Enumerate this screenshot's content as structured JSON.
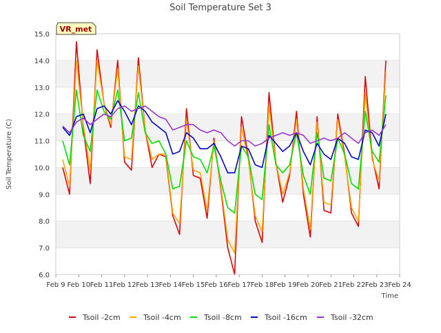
{
  "chart_data": {
    "type": "line",
    "title": "Soil Temperature Set 3",
    "xlabel": "Time",
    "ylabel": "Soil Temperature (C)",
    "ylim": [
      6.0,
      15.0
    ],
    "yticks": [
      "6.0",
      "7.0",
      "8.0",
      "9.0",
      "10.0",
      "11.0",
      "12.0",
      "13.0",
      "14.0",
      "15.0"
    ],
    "xlim": [
      0,
      15
    ],
    "xticks": [
      "Feb 9",
      "Feb 10",
      "Feb 11",
      "Feb 12",
      "Feb 13",
      "Feb 14",
      "Feb 15",
      "Feb 16",
      "Feb 17",
      "Feb 18",
      "Feb 19",
      "Feb 20",
      "Feb 21",
      "Feb 22",
      "Feb 23",
      "Feb 24"
    ],
    "grid_bands": true,
    "legend_position": "bottom",
    "station_label": "VR_met",
    "x": [
      0.3,
      0.6,
      0.9,
      1.2,
      1.5,
      1.8,
      2.1,
      2.4,
      2.7,
      3.0,
      3.3,
      3.6,
      3.9,
      4.2,
      4.5,
      4.8,
      5.1,
      5.4,
      5.7,
      6.0,
      6.3,
      6.6,
      6.9,
      7.2,
      7.5,
      7.8,
      8.1,
      8.4,
      8.7,
      9.0,
      9.3,
      9.6,
      9.9,
      10.2,
      10.5,
      10.8,
      11.1,
      11.4,
      11.7,
      12.0,
      12.3,
      12.6,
      12.9,
      13.2,
      13.5,
      13.8,
      14.1,
      14.4
    ],
    "series": [
      {
        "name": "Tsoil -2cm",
        "color": "#dd0000",
        "values": [
          10.0,
          9.0,
          14.7,
          11.5,
          9.4,
          14.4,
          12.4,
          11.5,
          14.0,
          10.2,
          9.9,
          14.1,
          11.4,
          10.0,
          10.5,
          10.4,
          8.2,
          7.5,
          12.2,
          9.7,
          9.6,
          8.1,
          11.1,
          9.2,
          7.0,
          6.0,
          11.9,
          10.4,
          8.0,
          7.2,
          12.8,
          10.2,
          8.7,
          9.7,
          12.1,
          9.0,
          7.4,
          11.9,
          8.4,
          8.3,
          12.0,
          10.5,
          8.3,
          7.8,
          13.4,
          10.4,
          9.2,
          14.0
        ]
      },
      {
        "name": "Tsoil -4cm",
        "color": "#ffa500",
        "values": [
          10.3,
          9.3,
          14.0,
          11.6,
          9.9,
          14.0,
          12.4,
          11.6,
          13.7,
          10.4,
          10.3,
          13.8,
          11.4,
          10.3,
          10.5,
          10.5,
          8.3,
          7.9,
          11.8,
          9.9,
          9.8,
          8.4,
          11.0,
          9.3,
          7.3,
          6.8,
          11.5,
          10.3,
          8.2,
          7.6,
          12.3,
          10.2,
          9.0,
          9.8,
          11.8,
          9.2,
          7.7,
          11.7,
          8.7,
          8.6,
          11.8,
          10.4,
          8.5,
          8.0,
          12.8,
          10.3,
          9.5,
          13.6
        ]
      },
      {
        "name": "Tsoil -8cm",
        "color": "#00dd00",
        "values": [
          11.0,
          10.1,
          12.9,
          11.2,
          10.6,
          12.9,
          12.1,
          11.8,
          12.9,
          11.0,
          11.1,
          12.8,
          11.3,
          10.9,
          11.0,
          10.5,
          9.2,
          9.3,
          11.0,
          10.4,
          10.3,
          9.8,
          10.8,
          9.5,
          8.5,
          8.3,
          10.8,
          10.4,
          9.0,
          8.8,
          11.6,
          10.1,
          9.8,
          10.1,
          11.3,
          9.7,
          9.0,
          11.3,
          9.6,
          9.5,
          11.1,
          10.5,
          9.4,
          9.2,
          12.1,
          10.6,
          10.2,
          12.7
        ]
      },
      {
        "name": "Tsoil -16cm",
        "color": "#0000cc",
        "values": [
          11.5,
          11.2,
          11.9,
          12.0,
          11.3,
          12.2,
          12.3,
          12.0,
          12.5,
          12.1,
          11.6,
          12.3,
          12.1,
          11.7,
          11.5,
          11.3,
          10.5,
          10.6,
          11.3,
          11.1,
          10.7,
          10.7,
          10.9,
          10.4,
          9.8,
          9.8,
          10.8,
          10.7,
          10.1,
          10.0,
          11.2,
          10.9,
          10.6,
          10.8,
          11.3,
          10.6,
          10.1,
          10.9,
          10.5,
          10.3,
          11.1,
          10.9,
          10.4,
          10.3,
          11.4,
          11.3,
          10.8,
          12.0
        ]
      },
      {
        "name": "Tsoil -32cm",
        "color": "#9933cc",
        "values": [
          11.55,
          11.3,
          11.7,
          11.85,
          11.6,
          11.8,
          12.0,
          11.9,
          12.2,
          12.3,
          12.1,
          12.2,
          12.3,
          12.1,
          11.9,
          11.8,
          11.4,
          11.5,
          11.6,
          11.6,
          11.4,
          11.3,
          11.4,
          11.3,
          11.0,
          10.8,
          11.0,
          11.0,
          10.8,
          10.9,
          11.1,
          11.2,
          11.3,
          11.2,
          11.3,
          11.2,
          10.9,
          11.0,
          11.1,
          11.0,
          11.1,
          11.3,
          11.1,
          10.9,
          11.3,
          11.4,
          11.2,
          11.6
        ]
      }
    ]
  }
}
